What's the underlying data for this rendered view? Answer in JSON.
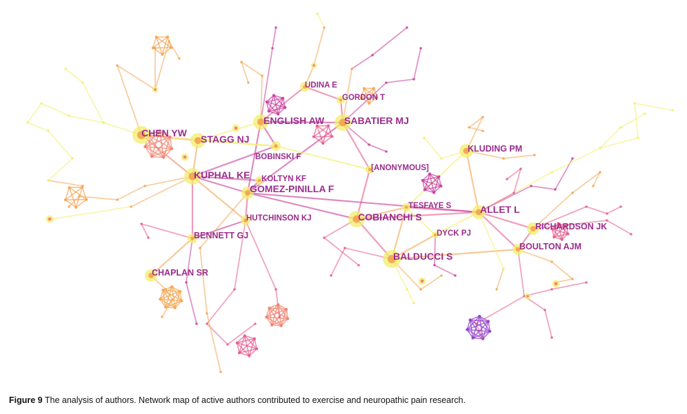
{
  "caption": {
    "figure_label": "Figure 9",
    "text": "The analysis of authors. Network map of active authors contributed to exercise and neuropathic pain research."
  },
  "palette": {
    "yellow": "#f2ee6c",
    "orange": "#f3a552",
    "salmon": "#f0826e",
    "pink": "#e65a8c",
    "magenta": "#c83c9c",
    "purple": "#8f3cc8",
    "label": "#9a2c8c"
  },
  "authors": [
    {
      "id": "chen_yw",
      "name": "CHEN YW"
    },
    {
      "id": "stagg_nj",
      "name": "STAGG NJ"
    },
    {
      "id": "english_aw",
      "name": "ENGLISH AW"
    },
    {
      "id": "sabatier_mj",
      "name": "SABATIER MJ"
    },
    {
      "id": "udina_e",
      "name": "UDINA E"
    },
    {
      "id": "gordon_t",
      "name": "GORDON T"
    },
    {
      "id": "bobinski_f",
      "name": "BOBINSKI F"
    },
    {
      "id": "kuphal_ke",
      "name": "KUPHAL KE"
    },
    {
      "id": "koltyn_kf",
      "name": "KOLTYN KF"
    },
    {
      "id": "gomez_pinilla_f",
      "name": "GOMEZ-PINILLA F"
    },
    {
      "id": "anonymous",
      "name": "[ANONYMOUS]"
    },
    {
      "id": "kluding_pm",
      "name": "KLUDING PM"
    },
    {
      "id": "tesfaye_s",
      "name": "TESFAYE S"
    },
    {
      "id": "allet_l",
      "name": "ALLET L"
    },
    {
      "id": "cobianchi_s",
      "name": "COBIANCHI S"
    },
    {
      "id": "hutchinson_kj",
      "name": "HUTCHINSON KJ"
    },
    {
      "id": "dyck_pj",
      "name": "DYCK PJ"
    },
    {
      "id": "richardson_jk",
      "name": "RICHARDSON JK"
    },
    {
      "id": "bennett_gj",
      "name": "BENNETT GJ"
    },
    {
      "id": "boulton_ajm",
      "name": "BOULTON AJM"
    },
    {
      "id": "balducci_s",
      "name": "BALDUCCI S"
    },
    {
      "id": "chaplan_sr",
      "name": "CHAPLAN SR"
    }
  ]
}
